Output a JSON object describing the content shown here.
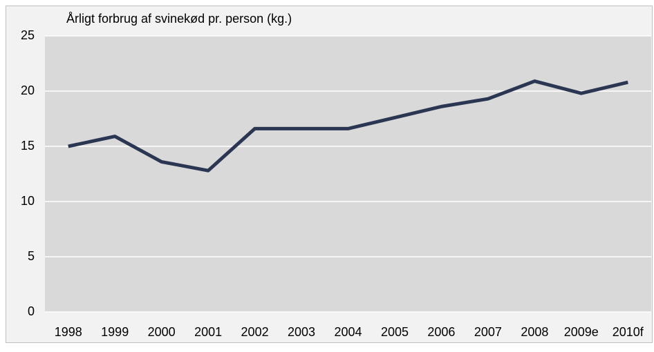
{
  "chart_data": {
    "type": "line",
    "title": "Årligt forbrug af svinekød pr. person (kg.)",
    "categories": [
      "1998",
      "1999",
      "2000",
      "2001",
      "2002",
      "2003",
      "2004",
      "2005",
      "2006",
      "2007",
      "2008",
      "2009e",
      "2010f"
    ],
    "series": [
      {
        "name": null,
        "color": "#2b3652",
        "values": [
          15.0,
          15.9,
          13.6,
          12.8,
          16.6,
          16.6,
          16.6,
          17.6,
          18.6,
          19.3,
          20.9,
          19.8,
          20.8
        ]
      }
    ],
    "ylim": [
      0,
      25
    ],
    "yticks": [
      0,
      5,
      10,
      15,
      20,
      25
    ],
    "grid": true
  }
}
